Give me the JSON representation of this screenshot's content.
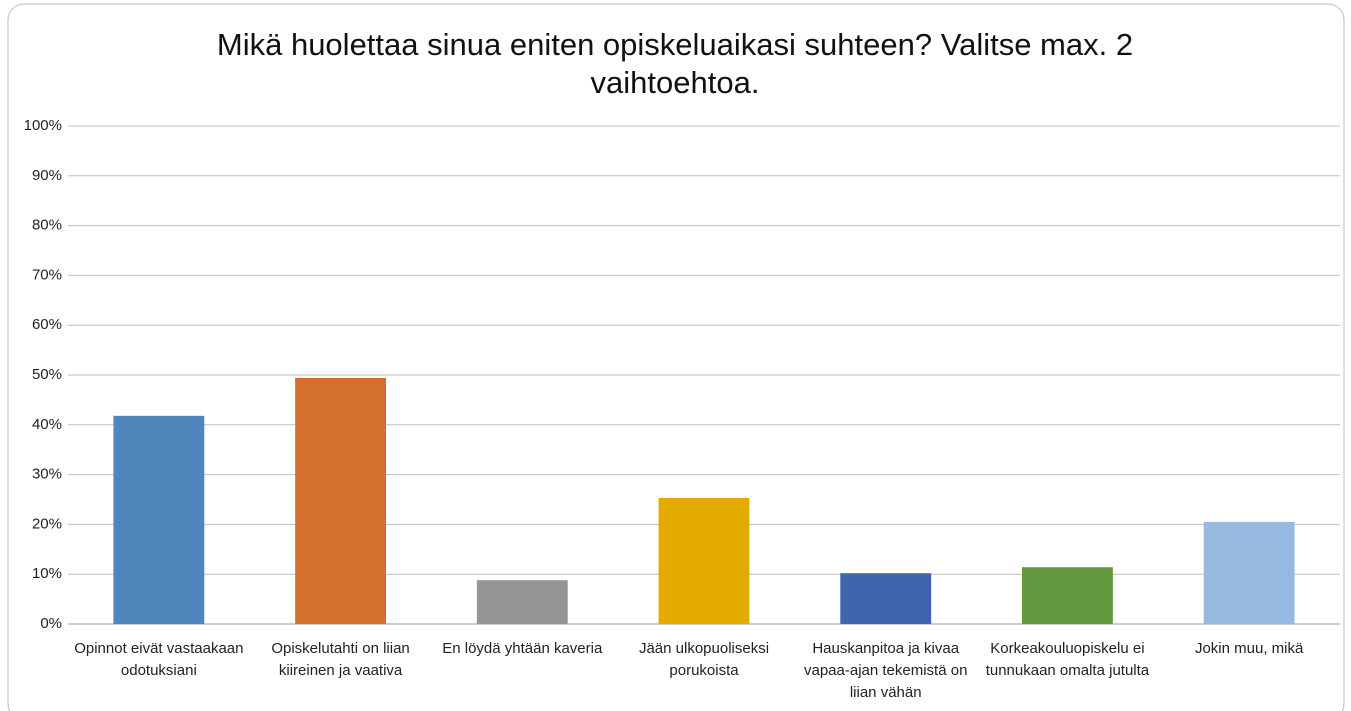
{
  "chart_data": {
    "type": "bar",
    "title": "Mikä huolettaa sinua eniten opiskeluaikasi suhteen? Valitse max. 2 vaihtoehtoa.",
    "categories": [
      "Opinnot eivät vastaakaan odotuksiani",
      "Opiskelutahti on liian kiireinen ja vaativa",
      "En löydä yhtään kaveria",
      "Jään ulkopuoliseksi porukoista",
      "Hauskanpitoa ja kivaa vapaa-ajan tekemistä on liian vähän",
      "Korkeakouluopiskelu ei tunnukaan omalta jutulta",
      "Jokin muu, mikä"
    ],
    "values": [
      41.8,
      49.4,
      8.8,
      25.3,
      10.2,
      11.4,
      20.5
    ],
    "colors": [
      "#4f87bd",
      "#d4702b",
      "#959595",
      "#e3aa00",
      "#3f66ad",
      "#62993e",
      "#98b9df"
    ],
    "ylim": [
      0,
      100
    ],
    "yticks": [
      {
        "value": 0,
        "label": "0%"
      },
      {
        "value": 10,
        "label": "10%"
      },
      {
        "value": 20,
        "label": "20%"
      },
      {
        "value": 30,
        "label": "30%"
      },
      {
        "value": 40,
        "label": "40%"
      },
      {
        "value": 50,
        "label": "50%"
      },
      {
        "value": 60,
        "label": "60%"
      },
      {
        "value": 70,
        "label": "70%"
      },
      {
        "value": 80,
        "label": "80%"
      },
      {
        "value": 90,
        "label": "90%"
      },
      {
        "value": 100,
        "label": "100%"
      }
    ],
    "grid": true
  }
}
